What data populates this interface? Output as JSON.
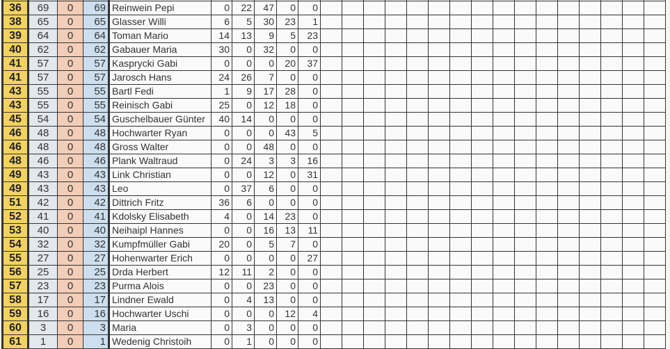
{
  "colors": {
    "rank": "#f2d260",
    "score": "#e3e7ee",
    "bonus": "#f2cdb8",
    "total": "#cddfee"
  },
  "empty_columns": 16,
  "rows": [
    {
      "rank": "36",
      "score": "69",
      "bonus": "0",
      "total": "69",
      "name": "Reinwein Pepi",
      "rounds": [
        "0",
        "22",
        "47",
        "0",
        "0"
      ]
    },
    {
      "rank": "38",
      "score": "65",
      "bonus": "0",
      "total": "65",
      "name": "Glasser Willi",
      "rounds": [
        "6",
        "5",
        "30",
        "23",
        "1"
      ]
    },
    {
      "rank": "39",
      "score": "64",
      "bonus": "0",
      "total": "64",
      "name": "Toman Mario",
      "rounds": [
        "14",
        "13",
        "9",
        "5",
        "23"
      ]
    },
    {
      "rank": "40",
      "score": "62",
      "bonus": "0",
      "total": "62",
      "name": "Gabauer Maria",
      "rounds": [
        "30",
        "0",
        "32",
        "0",
        "0"
      ]
    },
    {
      "rank": "41",
      "score": "57",
      "bonus": "0",
      "total": "57",
      "name": "Kasprycki Gabi",
      "rounds": [
        "0",
        "0",
        "0",
        "20",
        "37"
      ]
    },
    {
      "rank": "41",
      "score": "57",
      "bonus": "0",
      "total": "57",
      "name": "Jarosch Hans",
      "rounds": [
        "24",
        "26",
        "7",
        "0",
        "0"
      ]
    },
    {
      "rank": "43",
      "score": "55",
      "bonus": "0",
      "total": "55",
      "name": "Bartl Fedi",
      "rounds": [
        "1",
        "9",
        "17",
        "28",
        "0"
      ]
    },
    {
      "rank": "43",
      "score": "55",
      "bonus": "0",
      "total": "55",
      "name": "Reinisch Gabi",
      "rounds": [
        "25",
        "0",
        "12",
        "18",
        "0"
      ]
    },
    {
      "rank": "45",
      "score": "54",
      "bonus": "0",
      "total": "54",
      "name": "Guschelbauer Günter",
      "rounds": [
        "40",
        "14",
        "0",
        "0",
        "0"
      ]
    },
    {
      "rank": "46",
      "score": "48",
      "bonus": "0",
      "total": "48",
      "name": "Hochwarter Ryan",
      "rounds": [
        "0",
        "0",
        "0",
        "43",
        "5"
      ]
    },
    {
      "rank": "46",
      "score": "48",
      "bonus": "0",
      "total": "48",
      "name": "Gross Walter",
      "rounds": [
        "0",
        "0",
        "48",
        "0",
        "0"
      ]
    },
    {
      "rank": "48",
      "score": "46",
      "bonus": "0",
      "total": "46",
      "name": "Plank Waltraud",
      "rounds": [
        "0",
        "24",
        "3",
        "3",
        "16"
      ]
    },
    {
      "rank": "49",
      "score": "43",
      "bonus": "0",
      "total": "43",
      "name": "Link Christian",
      "rounds": [
        "0",
        "0",
        "12",
        "0",
        "31"
      ]
    },
    {
      "rank": "49",
      "score": "43",
      "bonus": "0",
      "total": "43",
      "name": "Leo",
      "rounds": [
        "0",
        "37",
        "6",
        "0",
        "0"
      ]
    },
    {
      "rank": "51",
      "score": "42",
      "bonus": "0",
      "total": "42",
      "name": "Dittrich Fritz",
      "rounds": [
        "36",
        "6",
        "0",
        "0",
        "0"
      ]
    },
    {
      "rank": "52",
      "score": "41",
      "bonus": "0",
      "total": "41",
      "name": "Kdolsky Elisabeth",
      "rounds": [
        "4",
        "0",
        "14",
        "23",
        "0"
      ]
    },
    {
      "rank": "53",
      "score": "40",
      "bonus": "0",
      "total": "40",
      "name": "Neihaipl Hannes",
      "rounds": [
        "0",
        "0",
        "16",
        "13",
        "11"
      ]
    },
    {
      "rank": "54",
      "score": "32",
      "bonus": "0",
      "total": "32",
      "name": "Kumpfmüller Gabi",
      "rounds": [
        "20",
        "0",
        "5",
        "7",
        "0"
      ]
    },
    {
      "rank": "55",
      "score": "27",
      "bonus": "0",
      "total": "27",
      "name": "Hohenwarter Erich",
      "rounds": [
        "0",
        "0",
        "0",
        "0",
        "27"
      ]
    },
    {
      "rank": "56",
      "score": "25",
      "bonus": "0",
      "total": "25",
      "name": "Drda Herbert",
      "rounds": [
        "12",
        "11",
        "2",
        "0",
        "0"
      ]
    },
    {
      "rank": "57",
      "score": "23",
      "bonus": "0",
      "total": "23",
      "name": "Purma Alois",
      "rounds": [
        "0",
        "0",
        "23",
        "0",
        "0"
      ]
    },
    {
      "rank": "58",
      "score": "17",
      "bonus": "0",
      "total": "17",
      "name": "Lindner Ewald",
      "rounds": [
        "0",
        "4",
        "13",
        "0",
        "0"
      ]
    },
    {
      "rank": "59",
      "score": "16",
      "bonus": "0",
      "total": "16",
      "name": "Hochwarter Uschi",
      "rounds": [
        "0",
        "0",
        "0",
        "12",
        "4"
      ]
    },
    {
      "rank": "60",
      "score": "3",
      "bonus": "0",
      "total": "3",
      "name": "Maria",
      "rounds": [
        "0",
        "3",
        "0",
        "0",
        "0"
      ]
    },
    {
      "rank": "61",
      "score": "1",
      "bonus": "0",
      "total": "1",
      "name": "Wedenig Christoih",
      "rounds": [
        "0",
        "1",
        "0",
        "0",
        "0"
      ]
    }
  ]
}
